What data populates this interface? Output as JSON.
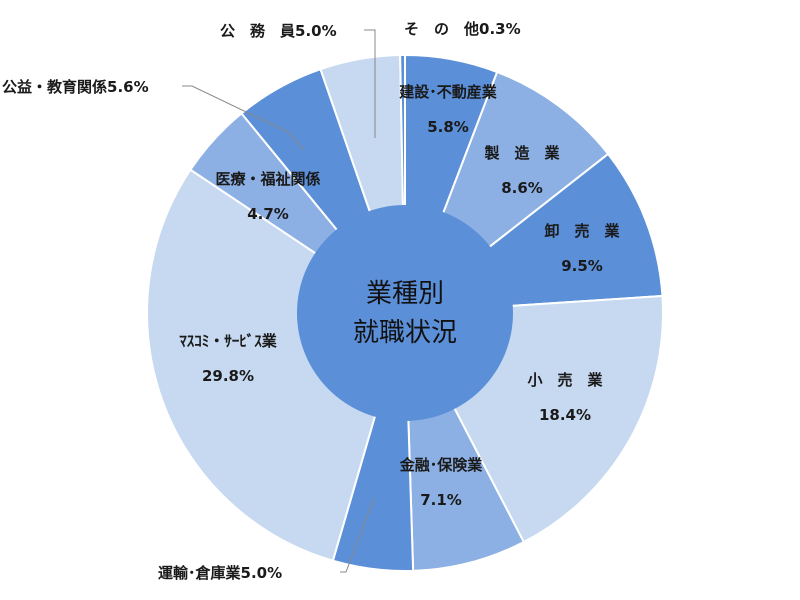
{
  "chart_data": {
    "type": "pie",
    "subtype": "donut",
    "center_label": [
      "業種別",
      "就職状況"
    ],
    "start_angle_deg": -90,
    "direction": "clockwise",
    "slices": [
      {
        "name": "建設･不動産業",
        "display": "建設･不動産業",
        "value": 5.8,
        "value_label": "5.8%",
        "color": "#5b8fd8",
        "label_mode": "inside"
      },
      {
        "name": "製造業",
        "display": "製　造　業",
        "value": 8.6,
        "value_label": "8.6%",
        "color": "#8cb0e4",
        "label_mode": "inside"
      },
      {
        "name": "卸売業",
        "display": "卸　売　業",
        "value": 9.5,
        "value_label": "9.5%",
        "color": "#5b8fd8",
        "label_mode": "inside"
      },
      {
        "name": "小売業",
        "display": "小　売　業",
        "value": 18.4,
        "value_label": "18.4%",
        "color": "#c6d9f1",
        "label_mode": "inside"
      },
      {
        "name": "金融･保険業",
        "display": "金融･保険業",
        "value": 7.1,
        "value_label": "7.1%",
        "color": "#8cb0e4",
        "label_mode": "inside"
      },
      {
        "name": "運輸･倉庫業",
        "display": "運輸･倉庫業",
        "value": 5.0,
        "value_label": "5.0%",
        "color": "#5b8fd8",
        "label_mode": "outside"
      },
      {
        "name": "マスコミ・サービス業",
        "display": "ﾏｽｺﾐ・ｻｰﾋﾞｽ業",
        "value": 29.8,
        "value_label": "29.8%",
        "color": "#c6d9f1",
        "label_mode": "inside"
      },
      {
        "name": "医療・福祉関係",
        "display": "医療・福祉関係",
        "value": 4.7,
        "value_label": "4.7%",
        "color": "#8cb0e4",
        "label_mode": "inside"
      },
      {
        "name": "公益・教育関係",
        "display": "公益・教育関係",
        "value": 5.6,
        "value_label": "5.6%",
        "color": "#5b8fd8",
        "label_mode": "outside"
      },
      {
        "name": "公務員",
        "display": "公　務　員",
        "value": 5.0,
        "value_label": "5.0%",
        "color": "#c6d9f1",
        "label_mode": "outside"
      },
      {
        "name": "その他",
        "display": "そ　の　他",
        "value": 0.3,
        "value_label": "0.3%",
        "color": "#5b8fd8",
        "label_mode": "outside"
      }
    ],
    "center_color": "#5b8fd8",
    "background": "#ffffff"
  }
}
